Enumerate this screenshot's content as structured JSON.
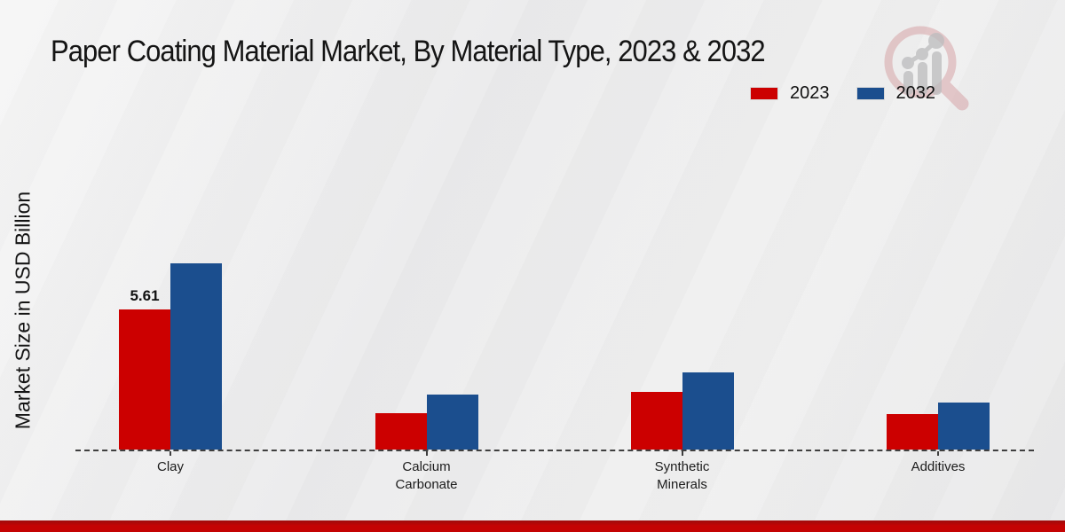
{
  "title": "Paper Coating Material Market, By Material Type, 2023 & 2032",
  "y_axis_label": "Market Size in USD Billion",
  "legend": {
    "items": [
      {
        "label": "2023",
        "color": "#cc0000"
      },
      {
        "label": "2032",
        "color": "#1b4e8e"
      }
    ]
  },
  "branding": {
    "footer_bar_color": "#c00000",
    "watermark_icon": "magnifier-bar-chart-logo"
  },
  "chart_data": {
    "type": "bar",
    "title": "Paper Coating Material Market, By Material Type, 2023 & 2032",
    "xlabel": "",
    "ylabel": "Market Size in USD Billion",
    "categories": [
      "Clay",
      "Calcium Carbonate",
      "Synthetic Minerals",
      "Additives"
    ],
    "series": [
      {
        "name": "2023",
        "color": "#cc0000",
        "values": [
          5.61,
          1.45,
          2.3,
          1.42
        ]
      },
      {
        "name": "2032",
        "color": "#1b4e8e",
        "values": [
          7.45,
          2.2,
          3.1,
          1.88
        ]
      }
    ],
    "data_labels": [
      {
        "category": "Clay",
        "series": "2023",
        "text": "5.61"
      }
    ],
    "ylim": [
      0,
      8
    ],
    "grid": false,
    "axis_style": "dashed-baseline-only",
    "legend_position": "top-right"
  }
}
